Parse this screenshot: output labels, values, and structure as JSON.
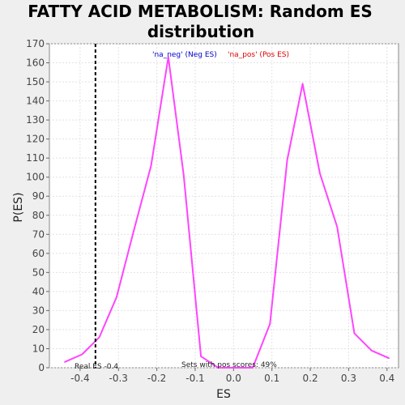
{
  "chart_data": {
    "type": "line",
    "title_line1": "FATTY ACID METABOLISM: Random ES",
    "title_line2": "distribution",
    "xlabel": "ES",
    "ylabel": "P(ES)",
    "xlim": [
      -0.48,
      0.43
    ],
    "ylim": [
      0,
      170
    ],
    "xticks": [
      "-0.4",
      "-0.3",
      "-0.2",
      "-0.1",
      "0.0",
      "0.1",
      "0.2",
      "0.3",
      "0.4"
    ],
    "xtick_values": [
      -0.4,
      -0.3,
      -0.2,
      -0.1,
      0.0,
      0.1,
      0.2,
      0.3,
      0.4
    ],
    "yticks": [
      0,
      10,
      20,
      30,
      40,
      50,
      60,
      70,
      80,
      90,
      100,
      110,
      120,
      130,
      140,
      150,
      160,
      170
    ],
    "grid": true,
    "series": [
      {
        "color": "#ff44ff",
        "x": [
          -0.44,
          -0.395,
          -0.35,
          -0.305,
          -0.26,
          -0.215,
          -0.17,
          -0.13,
          -0.085,
          -0.04,
          0.005,
          0.05,
          0.095,
          0.14,
          0.18,
          0.225,
          0.27,
          0.315,
          0.36,
          0.405
        ],
        "y": [
          3,
          7,
          16,
          37,
          72,
          106,
          163,
          101,
          6,
          0,
          0,
          0,
          23,
          109,
          149,
          102,
          74,
          18,
          9,
          5
        ]
      }
    ],
    "real_es_line": {
      "x": -0.36,
      "style": "dashed",
      "color": "#000000"
    },
    "legend": {
      "neg_label": "'na_neg' (Neg ES)",
      "neg_color": "#0000cc",
      "pos_label": "'na_pos' (Pos ES)",
      "pos_color": "#dd0000"
    },
    "annotations": {
      "real_es": "Real ES -0.4",
      "sets_pos": "Sets with pos scores: 49%"
    }
  }
}
